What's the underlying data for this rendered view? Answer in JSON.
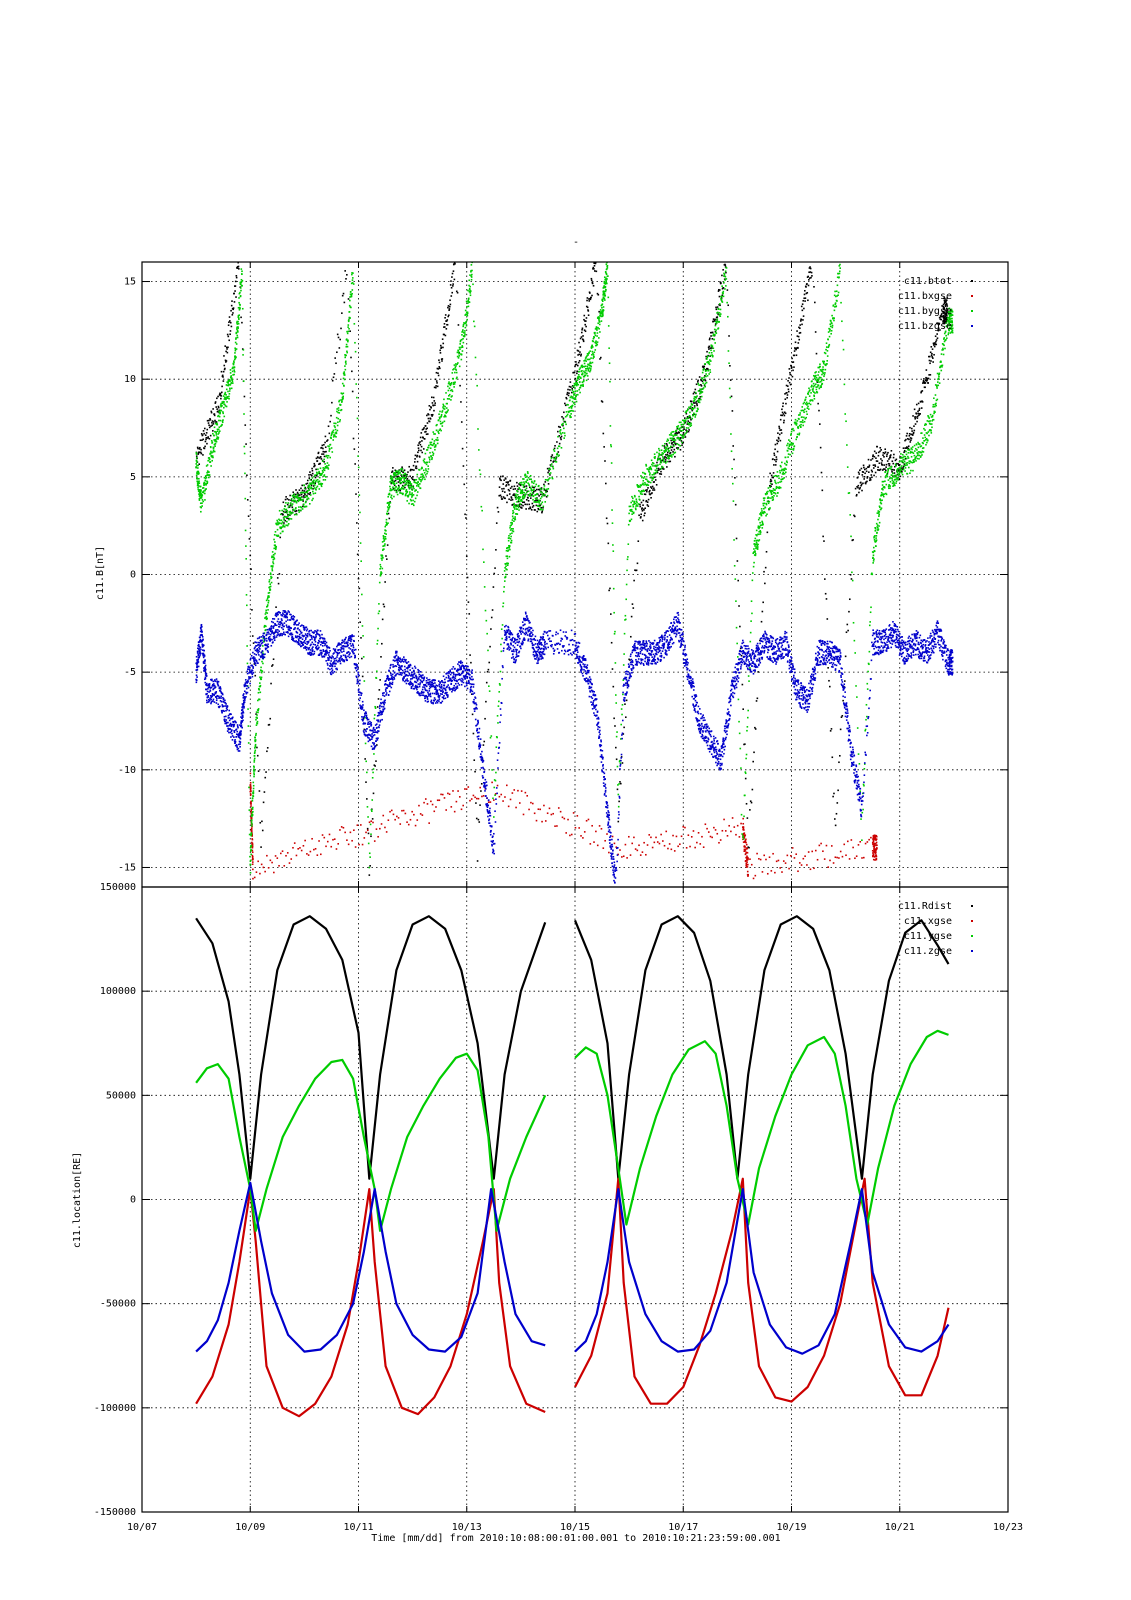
{
  "figure": {
    "top_title": "-",
    "xlabel": "Time [mm/dd]  from 2010:10:08:00:01:00.001  to  2010:10:21:23:59:00.001"
  },
  "chart_data": [
    {
      "type": "scatter",
      "name": "magnetic-field-panel",
      "ylabel": "c11.B[nT]",
      "xlabel": "",
      "x_unit": "day-of-October-2010",
      "xlim": [
        7,
        23
      ],
      "ylim": [
        -16,
        16
      ],
      "x_tick_labels": [
        "10/07",
        "10/09",
        "10/11",
        "10/13",
        "10/15",
        "10/17",
        "10/19",
        "10/21",
        "10/23"
      ],
      "y_ticks": [
        -15,
        -10,
        -5,
        0,
        5,
        10,
        15
      ],
      "grid": true,
      "legend_position": "top-right",
      "series": [
        {
          "name": "c11.btot",
          "color": "#000000",
          "style": "dots",
          "x": [
            8.0,
            8.4,
            8.8,
            9.2,
            9.6,
            10.0,
            10.4,
            10.8,
            11.2,
            11.6,
            12.0,
            12.4,
            12.8,
            13.2,
            13.6,
            14.0,
            14.4,
            15.0,
            15.4,
            15.8,
            16.2,
            16.6,
            17.0,
            17.4,
            17.8,
            18.2,
            18.6,
            19.0,
            19.4,
            19.8,
            20.2,
            20.6,
            21.0,
            21.4,
            21.8
          ],
          "y": [
            5.9,
            8.5,
            16,
            -14,
            3.2,
            4.0,
            6.5,
            16,
            -15,
            4.8,
            5.0,
            9.0,
            16,
            -14,
            4.5,
            4.0,
            3.8,
            10.2,
            16,
            -12,
            3.0,
            5.8,
            7.2,
            10.3,
            16,
            -14,
            4.5,
            10.5,
            16,
            -13,
            4.5,
            6.0,
            5.5,
            9.0,
            13.5
          ]
        },
        {
          "name": "c11.bxgse",
          "color": "#cc0000",
          "style": "dots",
          "x": [
            9.0,
            9.05,
            11.3,
            13.5,
            15.9,
            18.1,
            18.2,
            20.5
          ],
          "y": [
            -10.5,
            -15,
            -13,
            -11,
            -14,
            -13,
            -15,
            -14
          ]
        },
        {
          "name": "c11.bygse",
          "color": "#00cc00",
          "style": "dots",
          "x": [
            8.0,
            8.1,
            8.3,
            8.5,
            8.7,
            8.85,
            9.0,
            9.1,
            9.3,
            9.5,
            9.8,
            10.1,
            10.4,
            10.7,
            10.9,
            11.2,
            11.4,
            11.6,
            11.8,
            12.0,
            12.3,
            12.6,
            12.9,
            13.1,
            13.5,
            13.7,
            13.9,
            14.1,
            14.4,
            14.9,
            15.1,
            15.3,
            15.5,
            15.6,
            15.8,
            16.0,
            16.3,
            16.6,
            16.9,
            17.2,
            17.5,
            17.8,
            18.1,
            18.3,
            18.5,
            18.8,
            19.1,
            19.4,
            19.6,
            19.9,
            20.3,
            20.5,
            20.7,
            21.0,
            21.3,
            21.6,
            21.9
          ],
          "y": [
            5.8,
            3.5,
            6.5,
            8.5,
            10.5,
            15.5,
            -15,
            -8,
            -2,
            2.5,
            3.5,
            4.2,
            5.5,
            9.0,
            15.5,
            -15,
            0,
            4.5,
            4.8,
            4.0,
            6.0,
            8.5,
            11.5,
            15.5,
            -12,
            0,
            3.5,
            4.8,
            3.8,
            8.5,
            10.0,
            11.0,
            13.5,
            15.8,
            -12,
            3.0,
            5.0,
            6.0,
            7.0,
            8.5,
            11.0,
            15.5,
            -14,
            1.0,
            3.5,
            5.0,
            7.5,
            9.5,
            10.5,
            15.5,
            -13,
            1.0,
            4.5,
            5.5,
            6.0,
            8.0,
            13.0
          ]
        },
        {
          "name": "c11.bzgse",
          "color": "#0000cc",
          "style": "dots",
          "x": [
            8.0,
            8.1,
            8.2,
            8.4,
            8.6,
            8.8,
            8.9,
            9.1,
            9.3,
            9.5,
            9.7,
            9.9,
            10.1,
            10.3,
            10.5,
            10.7,
            10.9,
            11.1,
            11.3,
            11.5,
            11.7,
            11.9,
            12.1,
            12.3,
            12.5,
            12.7,
            12.9,
            13.1,
            13.3,
            13.5,
            13.7,
            13.9,
            14.1,
            14.3,
            14.45,
            15.0,
            15.2,
            15.4,
            15.6,
            15.75,
            15.9,
            16.1,
            16.3,
            16.5,
            16.7,
            16.9,
            17.1,
            17.3,
            17.5,
            17.7,
            17.9,
            18.1,
            18.3,
            18.5,
            18.7,
            18.9,
            19.1,
            19.3,
            19.5,
            19.7,
            19.9,
            20.1,
            20.3,
            20.5,
            20.7,
            20.9,
            21.1,
            21.3,
            21.5,
            21.7,
            21.9
          ],
          "y": [
            -5,
            -3,
            -6,
            -6,
            -7.5,
            -8.5,
            -6,
            -4,
            -3.5,
            -2.5,
            -2.5,
            -3,
            -3.5,
            -3.5,
            -4.5,
            -4,
            -3.5,
            -7.5,
            -8.5,
            -6,
            -4.5,
            -5,
            -5.5,
            -6,
            -6,
            -5.5,
            -5,
            -5.5,
            -10,
            -14,
            -3,
            -4,
            -2.5,
            -4,
            -3.5,
            -3.5,
            -5,
            -7,
            -12,
            -16,
            -6,
            -4,
            -4,
            -4,
            -3.5,
            -2.5,
            -5,
            -7.5,
            -8.5,
            -9.5,
            -6,
            -4,
            -4.5,
            -3.5,
            -4,
            -3.5,
            -6,
            -6.5,
            -4,
            -4,
            -4.5,
            -9,
            -12,
            -3.5,
            -3.5,
            -3,
            -4,
            -3.5,
            -4,
            -3,
            -4.5
          ]
        }
      ]
    },
    {
      "type": "line",
      "name": "location-panel",
      "ylabel": "c11.location[RE]",
      "xlabel": "",
      "x_unit": "day-of-October-2010",
      "xlim": [
        7,
        23
      ],
      "ylim": [
        -150000,
        150000
      ],
      "x_tick_labels": [
        "10/07",
        "10/09",
        "10/11",
        "10/13",
        "10/15",
        "10/17",
        "10/19",
        "10/21",
        "10/23"
      ],
      "y_ticks": [
        -150000,
        -100000,
        -50000,
        0,
        50000,
        100000,
        150000
      ],
      "grid": true,
      "legend_position": "top-right",
      "series": [
        {
          "name": "c11.Rdist",
          "color": "#000000",
          "x": [
            8.0,
            8.3,
            8.6,
            8.8,
            9.0,
            9.2,
            9.5,
            9.8,
            10.1,
            10.4,
            10.7,
            11.0,
            11.2,
            11.4,
            11.7,
            12.0,
            12.3,
            12.6,
            12.9,
            13.2,
            13.5,
            13.7,
            14.0,
            14.45,
            15.0,
            15.3,
            15.6,
            15.8,
            16.0,
            16.3,
            16.6,
            16.9,
            17.2,
            17.5,
            17.8,
            18.0,
            18.2,
            18.5,
            18.8,
            19.1,
            19.4,
            19.7,
            20.0,
            20.3,
            20.5,
            20.8,
            21.1,
            21.4,
            21.7,
            21.9
          ],
          "y": [
            135000,
            123000,
            95000,
            60000,
            10000,
            60000,
            110000,
            132000,
            136000,
            130000,
            115000,
            80000,
            10000,
            60000,
            110000,
            132000,
            136000,
            130000,
            110000,
            75000,
            10000,
            60000,
            100000,
            133000,
            134000,
            115000,
            75000,
            10000,
            60000,
            110000,
            132000,
            136000,
            128000,
            105000,
            60000,
            10000,
            60000,
            110000,
            132000,
            136000,
            130000,
            110000,
            70000,
            10000,
            60000,
            105000,
            128000,
            134000,
            122000,
            113000
          ]
        },
        {
          "name": "c11.xgse",
          "color": "#cc0000",
          "x": [
            8.0,
            8.3,
            8.6,
            8.8,
            9.0,
            9.1,
            9.3,
            9.6,
            9.9,
            10.2,
            10.5,
            10.8,
            11.0,
            11.2,
            11.3,
            11.5,
            11.8,
            12.1,
            12.4,
            12.7,
            13.0,
            13.3,
            13.5,
            13.6,
            13.8,
            14.1,
            14.45,
            15.0,
            15.3,
            15.6,
            15.8,
            15.9,
            16.1,
            16.4,
            16.7,
            17.0,
            17.3,
            17.6,
            17.9,
            18.1,
            18.2,
            18.4,
            18.7,
            19.0,
            19.3,
            19.6,
            19.9,
            20.2,
            20.35,
            20.5,
            20.8,
            21.1,
            21.4,
            21.7,
            21.9
          ],
          "y": [
            -98000,
            -85000,
            -60000,
            -30000,
            5000,
            -20000,
            -80000,
            -100000,
            -104000,
            -98000,
            -85000,
            -60000,
            -30000,
            5000,
            -30000,
            -80000,
            -100000,
            -103000,
            -95000,
            -80000,
            -55000,
            -20000,
            5000,
            -40000,
            -80000,
            -98000,
            -102000,
            -90000,
            -75000,
            -45000,
            10000,
            -40000,
            -85000,
            -98000,
            -98000,
            -90000,
            -70000,
            -45000,
            -15000,
            10000,
            -40000,
            -80000,
            -95000,
            -97000,
            -90000,
            -75000,
            -50000,
            -10000,
            10000,
            -40000,
            -80000,
            -94000,
            -94000,
            -75000,
            -52000
          ]
        },
        {
          "name": "c11.ygse",
          "color": "#00cc00",
          "x": [
            8.0,
            8.2,
            8.4,
            8.6,
            8.8,
            9.0,
            9.1,
            9.3,
            9.6,
            9.9,
            10.2,
            10.5,
            10.7,
            10.9,
            11.1,
            11.3,
            11.4,
            11.6,
            11.9,
            12.2,
            12.5,
            12.8,
            13.0,
            13.2,
            13.4,
            13.55,
            13.8,
            14.1,
            14.45,
            15.0,
            15.2,
            15.4,
            15.6,
            15.8,
            15.95,
            16.2,
            16.5,
            16.8,
            17.1,
            17.4,
            17.6,
            17.8,
            18.0,
            18.2,
            18.4,
            18.7,
            19.0,
            19.3,
            19.6,
            19.8,
            20.0,
            20.2,
            20.4,
            20.6,
            20.9,
            21.2,
            21.5,
            21.7,
            21.9
          ],
          "y": [
            56000,
            63000,
            65000,
            58000,
            30000,
            5000,
            -15000,
            5000,
            30000,
            45000,
            58000,
            66000,
            67000,
            58000,
            30000,
            5000,
            -15000,
            5000,
            30000,
            45000,
            58000,
            68000,
            70000,
            62000,
            30000,
            -15000,
            10000,
            30000,
            50000,
            68000,
            73000,
            70000,
            50000,
            15000,
            -12000,
            15000,
            40000,
            60000,
            72000,
            76000,
            70000,
            45000,
            10000,
            -12000,
            15000,
            40000,
            60000,
            74000,
            78000,
            70000,
            45000,
            10000,
            -12000,
            15000,
            45000,
            65000,
            78000,
            81000,
            79000
          ]
        },
        {
          "name": "c11.zgse",
          "color": "#0000cc",
          "x": [
            8.0,
            8.2,
            8.4,
            8.6,
            8.8,
            9.0,
            9.2,
            9.4,
            9.7,
            10.0,
            10.3,
            10.6,
            10.9,
            11.1,
            11.3,
            11.5,
            11.7,
            12.0,
            12.3,
            12.6,
            12.9,
            13.2,
            13.45,
            13.7,
            13.9,
            14.2,
            14.45,
            15.0,
            15.2,
            15.4,
            15.6,
            15.8,
            16.0,
            16.3,
            16.6,
            16.9,
            17.2,
            17.5,
            17.8,
            18.1,
            18.3,
            18.6,
            18.9,
            19.2,
            19.5,
            19.8,
            20.1,
            20.3,
            20.5,
            20.8,
            21.1,
            21.4,
            21.7,
            21.9
          ],
          "y": [
            -73000,
            -68000,
            -58000,
            -40000,
            -15000,
            8000,
            -20000,
            -45000,
            -65000,
            -73000,
            -72000,
            -65000,
            -50000,
            -25000,
            5000,
            -25000,
            -50000,
            -65000,
            -72000,
            -73000,
            -66000,
            -45000,
            5000,
            -30000,
            -55000,
            -68000,
            -70000,
            -73000,
            -68000,
            -55000,
            -30000,
            5000,
            -30000,
            -55000,
            -68000,
            -73000,
            -72000,
            -63000,
            -40000,
            5000,
            -35000,
            -60000,
            -71000,
            -74000,
            -70000,
            -55000,
            -20000,
            5000,
            -35000,
            -60000,
            -71000,
            -73000,
            -68000,
            -60000
          ]
        }
      ]
    }
  ]
}
